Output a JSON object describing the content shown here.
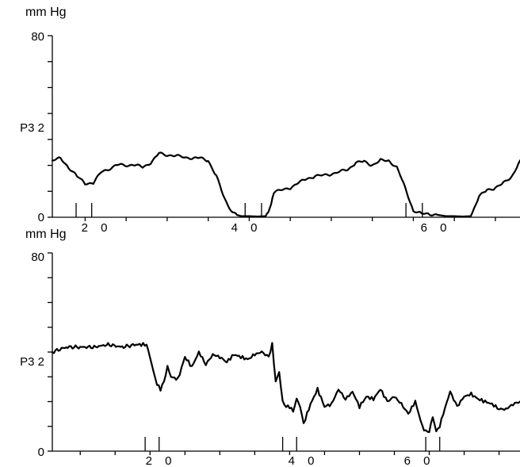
{
  "chart_data": [
    {
      "type": "line",
      "unit_label": "mm Hg",
      "channel_label": "P3 2",
      "ylim": [
        0,
        80
      ],
      "xlim": [
        16,
        73
      ],
      "y_ticks": [
        {
          "value": 80,
          "label": "80"
        },
        {
          "value": 0,
          "label": "0"
        }
      ],
      "x_ticks": [
        {
          "value": 20,
          "label": "2 0"
        },
        {
          "value": 40,
          "label": "4 0"
        },
        {
          "value": 60,
          "label": "6 0"
        }
      ],
      "event_markers": [
        18.9,
        20.8,
        39.5,
        41.5,
        59.1,
        61.1
      ],
      "series": [
        {
          "x": [
            16,
            17,
            18,
            19,
            20,
            21,
            22,
            24,
            26,
            27,
            28,
            29,
            31,
            33,
            34,
            35,
            36,
            37,
            38,
            38.5,
            39,
            40,
            41,
            42,
            42.5,
            43,
            45,
            46,
            47,
            48,
            50,
            52,
            53,
            54,
            55,
            56,
            57,
            58,
            59,
            60,
            61,
            62,
            63,
            64,
            65,
            66,
            67,
            68,
            69,
            70,
            71,
            72,
            73
          ],
          "y": [
            25,
            26,
            22,
            18,
            15,
            15,
            20,
            23,
            23,
            22,
            24,
            28,
            27,
            26,
            26,
            25,
            18,
            8,
            2,
            1,
            0.5,
            0.5,
            0.3,
            0.5,
            4,
            11,
            13,
            15,
            17,
            18,
            19,
            21,
            24,
            24.5,
            23,
            25,
            25,
            22,
            13,
            3,
            1.5,
            1.5,
            1,
            0.5,
            0.5,
            0.3,
            0.5,
            9,
            12,
            13,
            15,
            18,
            25
          ]
        }
      ]
    },
    {
      "type": "line",
      "unit_label": "mm Hg",
      "channel_label": "P3 2",
      "ylim": [
        0,
        80
      ],
      "xlim": [
        6,
        73
      ],
      "y_ticks": [
        {
          "value": 80,
          "label": "80"
        },
        {
          "value": 0,
          "label": "0"
        }
      ],
      "x_ticks": [
        {
          "value": 20,
          "label": "2 0"
        },
        {
          "value": 40,
          "label": "4 0"
        },
        {
          "value": 60,
          "label": "6 0"
        }
      ],
      "event_markers": [
        19.3,
        21.3,
        39,
        41,
        59.5,
        61.5
      ],
      "series": [
        {
          "x": [
            6,
            8,
            10,
            12,
            14,
            16,
            18,
            19,
            19.5,
            20,
            20.5,
            21,
            21.5,
            22,
            22.5,
            23,
            24,
            25,
            26,
            27,
            28,
            29,
            30,
            31,
            32,
            33,
            34,
            35,
            36,
            37,
            37.5,
            38,
            38.5,
            39,
            39.5,
            40,
            40.5,
            41,
            41.5,
            42,
            43,
            44,
            45,
            46,
            47,
            48,
            49,
            50,
            51,
            52,
            53,
            54,
            55,
            56,
            57,
            58,
            59,
            59.5,
            60,
            60.5,
            61,
            61.5,
            62,
            63,
            64,
            65,
            66,
            67,
            68,
            69,
            70,
            71,
            72,
            73
          ],
          "y": [
            40,
            42,
            42,
            42,
            43,
            42,
            43,
            43,
            43,
            38,
            32,
            27,
            25,
            28,
            34,
            30,
            29,
            38,
            34,
            40,
            35,
            39,
            38,
            36,
            39,
            38,
            37,
            39,
            40,
            38,
            43,
            28,
            32,
            20,
            18,
            18,
            16,
            21,
            18,
            11,
            19,
            25,
            18,
            19,
            25,
            21,
            24,
            18,
            22,
            21,
            25,
            20,
            22,
            19,
            15,
            20,
            10,
            8,
            8,
            14,
            8,
            10,
            15,
            24,
            18,
            22,
            23,
            21,
            20,
            19,
            17,
            17,
            19,
            20
          ]
        }
      ]
    }
  ]
}
